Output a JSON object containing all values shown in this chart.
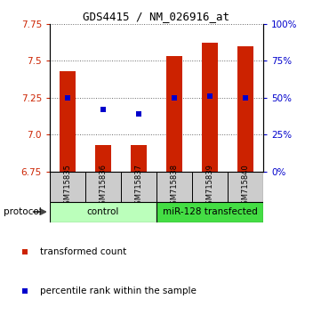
{
  "title": "GDS4415 / NM_026916_at",
  "samples": [
    "GSM715835",
    "GSM715836",
    "GSM715837",
    "GSM715838",
    "GSM715839",
    "GSM715840"
  ],
  "red_bar_values": [
    7.43,
    6.93,
    6.93,
    7.53,
    7.62,
    7.6
  ],
  "blue_square_values": [
    7.25,
    7.17,
    7.14,
    7.25,
    7.26,
    7.25
  ],
  "ymin": 6.75,
  "ymax": 7.75,
  "yticks_left": [
    6.75,
    7.0,
    7.25,
    7.5,
    7.75
  ],
  "yticks_right": [
    0,
    25,
    50,
    75,
    100
  ],
  "bar_color": "#cc2200",
  "square_color": "#0000cc",
  "ctrl_color": "#bbffbb",
  "mir_color": "#44dd44",
  "legend_red_label": "transformed count",
  "legend_blue_label": "percentile rank within the sample",
  "protocol_label": "protocol",
  "grid_color": "#888888",
  "tick_label_color_left": "#cc2200",
  "tick_label_color_right": "#0000cc",
  "sample_box_color": "#cccccc",
  "bar_width": 0.45
}
